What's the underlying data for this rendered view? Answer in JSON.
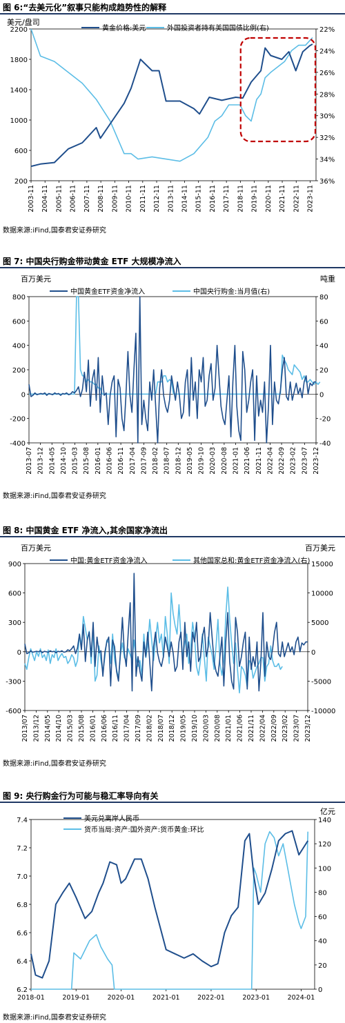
{
  "figures": [
    {
      "title": "图 6:“去美元化”叙事只能构成趋势性的解释",
      "source": "数据来源:iFind,国泰君安证券研究"
    },
    {
      "title": "图 7: 中国央行购金带动黄金 ETF 大规模净流入",
      "source": "数据来源:iFind,国泰君安证券研究"
    },
    {
      "title": "图 8: 中国黄金 ETF 净流入,其余国家净流出",
      "source": "数据来源:iFind,国泰君安证券研究"
    },
    {
      "title": "图 9: 央行购金行为可能与稳汇率导向有关",
      "source": "数据来源:iFind,国泰君安证券研究"
    }
  ],
  "colors": {
    "dark": "#1f4e8c",
    "light": "#5bbde6",
    "rule": "#1f3864",
    "box": "#c00000"
  },
  "chart_data": [
    {
      "type": "line",
      "ylabel": "美元/盘司",
      "ylim": [
        200,
        2200
      ],
      "yticks": [
        "2200",
        "1800",
        "1400",
        "1000",
        "600",
        "200"
      ],
      "y2lim": [
        22,
        36
      ],
      "y2_inverted": true,
      "y2ticks": [
        "22%",
        "24%",
        "26%",
        "28%",
        "30%",
        "32%",
        "34%",
        "36%"
      ],
      "xticks": [
        "2003-11",
        "2004-11",
        "2005-11",
        "2006-11",
        "2007-11",
        "2008-11",
        "2009-11",
        "2010-11",
        "2011-11",
        "2012-11",
        "2013-11",
        "2014-11",
        "2015-11",
        "2016-11",
        "2017-11",
        "2018-11",
        "2019-11",
        "2020-11",
        "2021-11",
        "2022-11",
        "2023-11"
      ],
      "annotation": "dashed box 2018-11 to 2023-11",
      "series": [
        {
          "name": "黄金价格:美元",
          "axis": "left",
          "x": [
            2003.83,
            2004.5,
            2005.5,
            2006.5,
            2007.5,
            2008.5,
            2008.8,
            2009.5,
            2010.5,
            2011.0,
            2011.67,
            2012.5,
            2013.0,
            2013.5,
            2014.5,
            2015.5,
            2015.9,
            2016.6,
            2017.5,
            2018.5,
            2019.0,
            2019.6,
            2020.3,
            2020.6,
            2021.0,
            2021.8,
            2022.3,
            2022.8,
            2023.3,
            2023.8,
            2024.0
          ],
          "y": [
            390,
            420,
            440,
            620,
            700,
            900,
            760,
            950,
            1220,
            1420,
            1800,
            1650,
            1650,
            1250,
            1250,
            1150,
            1080,
            1300,
            1260,
            1300,
            1290,
            1500,
            1650,
            1950,
            1850,
            1800,
            1900,
            1650,
            1900,
            1980,
            2000
          ]
        },
        {
          "name": "外国投资者持有美国国债比例(右)",
          "axis": "right",
          "x": [
            2003.83,
            2004.5,
            2005.5,
            2006.5,
            2007.5,
            2008.5,
            2009.5,
            2010.5,
            2011.0,
            2011.5,
            2012.5,
            2013.5,
            2014.5,
            2015.5,
            2016.5,
            2017.0,
            2017.5,
            2018.0,
            2018.8,
            2019.2,
            2019.6,
            2020.0,
            2020.3,
            2020.6,
            2021.0,
            2021.5,
            2022.0,
            2022.5,
            2023.0,
            2023.5,
            2024.0
          ],
          "y": [
            22.0,
            24.5,
            25.0,
            26.0,
            27.0,
            28.5,
            30.5,
            33.5,
            33.5,
            34.0,
            33.8,
            34.0,
            34.2,
            33.5,
            32.0,
            30.5,
            30.0,
            29.0,
            29.0,
            30.0,
            30.5,
            28.5,
            28.0,
            26.5,
            26.0,
            25.5,
            25.0,
            24.0,
            23.5,
            23.5,
            22.8
          ]
        }
      ]
    },
    {
      "type": "line",
      "ylabel": "百万美元",
      "y2label": "吨重",
      "ylim": [
        -400,
        800
      ],
      "yticks": [
        "800",
        "600",
        "400",
        "200",
        "0",
        "-200",
        "-400"
      ],
      "y2lim": [
        -40,
        80
      ],
      "y2ticks": [
        "80",
        "60",
        "40",
        "20",
        "0",
        "-20",
        "-40"
      ],
      "xticks": [
        "2013-07",
        "2013-12",
        "2014-05",
        "2014-10",
        "2015-03",
        "2015-08",
        "2016-01",
        "2016-06",
        "2016-11",
        "2017-04",
        "2017-09",
        "2018-02",
        "2018-07",
        "2018-12",
        "2019-05",
        "2019-10",
        "2020-03",
        "2020-08",
        "2021-01",
        "2021-06",
        "2021-11",
        "2022-04",
        "2022-09",
        "2023-02",
        "2023-07",
        "2023-12"
      ],
      "series": [
        {
          "name": "中国黄金ETF资金净流入",
          "axis": "left",
          "values": [
            80,
            -20,
            -10,
            10,
            -5,
            0,
            5,
            0,
            10,
            -10,
            5,
            0,
            -5,
            10,
            0,
            5,
            -10,
            5,
            0,
            10,
            -5,
            0,
            20,
            10,
            30,
            60,
            -20,
            40,
            180,
            20,
            280,
            -100,
            120,
            200,
            -50,
            300,
            -150,
            150,
            -10,
            10,
            -250,
            -10,
            100,
            150,
            -350,
            120,
            50,
            -200,
            -300,
            0,
            350,
            -10,
            -150,
            200,
            500,
            -400,
            800,
            -250,
            -50,
            -200,
            -300,
            100,
            -50,
            200,
            -100,
            -400,
            50,
            200,
            -10,
            -100,
            -150,
            -50,
            150,
            50,
            -50,
            100,
            -10,
            -200,
            -150,
            100,
            200,
            -180,
            300,
            -50,
            100,
            -200,
            200,
            100,
            300,
            -100,
            -50,
            150,
            250,
            -50,
            50,
            400,
            150,
            -100,
            -200,
            -250,
            -50,
            150,
            -350,
            100,
            400,
            -100,
            -300,
            -380,
            350,
            200,
            -150,
            -50,
            100,
            200,
            -380,
            150,
            -180,
            -50,
            -150,
            100,
            -400,
            -100,
            400,
            -250,
            100,
            -50,
            -80,
            30,
            200,
            300,
            -20,
            -50,
            100,
            -50,
            20,
            90,
            0,
            50,
            -30,
            100,
            150,
            0,
            90,
            70,
            100,
            100
          ]
        },
        {
          "name": "中国央行购金:当月值(右)",
          "axis": "right",
          "values": [
            0,
            0,
            0,
            0,
            0,
            0,
            0,
            0,
            0,
            0,
            0,
            0,
            0,
            0,
            0,
            0,
            0,
            0,
            0,
            0,
            0,
            0,
            0,
            0,
            80,
            80,
            20,
            15,
            15,
            10,
            12,
            10,
            10,
            8,
            8,
            5,
            5,
            0,
            0,
            0,
            0,
            0,
            0,
            0,
            0,
            0,
            0,
            0,
            0,
            0,
            0,
            0,
            0,
            0,
            0,
            0,
            0,
            0,
            0,
            0,
            0,
            0,
            0,
            0,
            0,
            10,
            10,
            10,
            15,
            15,
            10,
            12,
            10,
            0,
            0,
            0,
            0,
            0,
            0,
            0,
            0,
            0,
            0,
            0,
            0,
            0,
            0,
            0,
            0,
            0,
            0,
            0,
            0,
            0,
            0,
            0,
            0,
            0,
            0,
            0,
            0,
            0,
            0,
            0,
            0,
            0,
            0,
            0,
            0,
            0,
            0,
            0,
            0,
            0,
            0,
            0,
            0,
            0,
            0,
            0,
            0,
            0,
            0,
            0,
            0,
            0,
            0,
            0,
            32,
            28,
            25,
            20,
            18,
            16,
            24,
            22,
            20,
            18,
            12,
            15,
            10,
            10,
            12,
            10,
            8,
            10,
            8,
            10
          ]
        }
      ]
    },
    {
      "type": "line",
      "ylabel": "百万美元",
      "y2label": "百万美元",
      "ylim": [
        -600,
        900
      ],
      "yticks": [
        "900",
        "600",
        "300",
        "0",
        "-300",
        "-600"
      ],
      "y2lim": [
        -10000,
        15000
      ],
      "y2ticks": [
        "15000",
        "10000",
        "5000",
        "0",
        "-5000",
        "-10000"
      ],
      "xticks": [
        "2013/07",
        "2013/12",
        "2014/05",
        "2014/10",
        "2015/03",
        "2015/08",
        "2016/01",
        "2016/06",
        "2016/11",
        "2017/04",
        "2017/09",
        "2018/02",
        "2018/07",
        "2018/12",
        "2019/05",
        "2019/10",
        "2020/03",
        "2020/08",
        "2021/01",
        "2021/06",
        "2021/11",
        "2022/04",
        "2022/09",
        "2023/02",
        "2023/07",
        "2023/12"
      ],
      "series": [
        {
          "name": "中国:黄金ETF资金净流入",
          "axis": "left",
          "values": [
            80,
            -20,
            -10,
            10,
            -5,
            0,
            5,
            0,
            10,
            -10,
            5,
            0,
            -5,
            10,
            0,
            5,
            -10,
            5,
            0,
            10,
            -5,
            0,
            20,
            10,
            30,
            60,
            -20,
            40,
            180,
            20,
            280,
            -100,
            120,
            200,
            -50,
            300,
            -150,
            150,
            -10,
            10,
            -250,
            -10,
            100,
            150,
            -350,
            120,
            50,
            -200,
            -300,
            0,
            350,
            -10,
            -150,
            200,
            500,
            -400,
            800,
            -250,
            -50,
            -200,
            -300,
            100,
            -50,
            200,
            -100,
            -400,
            50,
            200,
            -10,
            -100,
            -150,
            -50,
            150,
            50,
            -50,
            100,
            -10,
            -200,
            -150,
            100,
            200,
            -180,
            300,
            -50,
            100,
            -200,
            200,
            100,
            300,
            -100,
            -50,
            150,
            250,
            -50,
            50,
            400,
            150,
            -100,
            -200,
            -250,
            -50,
            150,
            -350,
            100,
            400,
            -100,
            -300,
            -380,
            350,
            200,
            -150,
            -50,
            100,
            200,
            -380,
            150,
            -180,
            -50,
            -150,
            100,
            -400,
            -100,
            400,
            -250,
            100,
            -50,
            -80,
            30,
            200,
            300,
            -20,
            -50,
            100,
            -50,
            20,
            90,
            0,
            50,
            -30,
            100,
            150,
            0,
            90,
            70,
            100,
            100
          ]
        },
        {
          "name": "其他国家总和:黄金ETF资金净流入(右)",
          "axis": "right",
          "values": [
            -2000,
            -3000,
            -1000,
            500,
            -500,
            -1500,
            0,
            -800,
            500,
            -1000,
            -500,
            -1500,
            300,
            -2000,
            -500,
            -1000,
            500,
            -1500,
            -800,
            -300,
            -1000,
            -800,
            -2000,
            -1500,
            -500,
            -1000,
            -2500,
            -1500,
            3000,
            1000,
            6000,
            4000,
            2000,
            3500,
            -2000,
            4000,
            -5000,
            -4000,
            1000,
            -1500,
            -3500,
            -1000,
            2000,
            1500,
            -2000,
            3000,
            -1500,
            -3000,
            -4500,
            -500,
            1500,
            -1000,
            -1500,
            500,
            -500,
            -1500,
            2000,
            -1000,
            -2500,
            -1500,
            -4000,
            3000,
            -1000,
            1000,
            5500,
            2000,
            -1500,
            2000,
            5000,
            1500,
            3000,
            -1000,
            6000,
            3000,
            -2000,
            10000,
            6500,
            4500,
            3000,
            8000,
            2500,
            -1000,
            1500,
            3000,
            -2000,
            500,
            5000,
            2500,
            -2500,
            -4000,
            -1500,
            3000,
            -1000,
            -5000,
            2500,
            1000,
            -500,
            -3000,
            1000,
            5500,
            -2000,
            -4000,
            -1500,
            6000,
            11000,
            5500,
            1500,
            -2000,
            1500,
            -3000,
            -7000,
            -2500,
            -3000,
            -4000,
            -6000,
            -1500,
            -2000,
            -4500,
            -3500,
            -2500,
            -2000,
            -1000,
            -1000,
            -5000,
            -2500,
            -2000,
            1000,
            -1500,
            -2500,
            -2500,
            -2000,
            -3000,
            -2500
          ]
        }
      ]
    },
    {
      "type": "line",
      "ylim": [
        6.2,
        7.4
      ],
      "yticks": [
        "7.4",
        "7.2",
        "7.0",
        "6.8",
        "6.6",
        "6.4",
        "6.2"
      ],
      "y2label": "亿元",
      "y2lim": [
        0,
        140
      ],
      "y2ticks": [
        "140",
        "120",
        "100",
        "80",
        "60",
        "40",
        "20",
        "0"
      ],
      "xticks": [
        "2018-01",
        "2019-01",
        "2020-01",
        "2021-01",
        "2022-01",
        "2023-01",
        "2024-01"
      ],
      "series": [
        {
          "name": "美元兑离岸人民币",
          "axis": "left",
          "x": [
            2018.0,
            2018.1,
            2018.25,
            2018.4,
            2018.55,
            2018.7,
            2018.85,
            2019.0,
            2019.2,
            2019.35,
            2019.5,
            2019.6,
            2019.75,
            2019.9,
            2020.0,
            2020.1,
            2020.3,
            2020.45,
            2020.6,
            2020.75,
            2020.9,
            2021.0,
            2021.2,
            2021.4,
            2021.6,
            2021.8,
            2022.0,
            2022.15,
            2022.3,
            2022.45,
            2022.6,
            2022.75,
            2022.85,
            2022.95,
            2023.05,
            2023.2,
            2023.35,
            2023.5,
            2023.65,
            2023.8,
            2023.95,
            2024.05,
            2024.15
          ],
          "y": [
            6.45,
            6.3,
            6.28,
            6.4,
            6.8,
            6.88,
            6.95,
            6.85,
            6.7,
            6.75,
            6.88,
            6.95,
            7.1,
            7.08,
            6.95,
            6.98,
            7.12,
            7.12,
            6.98,
            6.78,
            6.6,
            6.48,
            6.45,
            6.42,
            6.45,
            6.4,
            6.36,
            6.38,
            6.6,
            6.72,
            6.78,
            7.25,
            7.3,
            7.0,
            6.8,
            6.88,
            7.05,
            7.25,
            7.3,
            7.32,
            7.15,
            7.2,
            7.25
          ]
        },
        {
          "name": "货币当局:资产:国外资产:货币黄金:环比",
          "axis": "right",
          "x": [
            2018.0,
            2018.9,
            2018.95,
            2019.1,
            2019.3,
            2019.45,
            2019.55,
            2019.7,
            2019.8,
            2019.85,
            2022.9,
            2022.95,
            2023.0,
            2023.1,
            2023.2,
            2023.3,
            2023.4,
            2023.5,
            2023.6,
            2023.7,
            2023.75,
            2023.85,
            2023.95,
            2024.0,
            2024.1,
            2024.15
          ],
          "y": [
            0,
            0,
            30,
            25,
            40,
            45,
            35,
            25,
            20,
            0,
            0,
            100,
            95,
            80,
            120,
            130,
            125,
            110,
            120,
            100,
            90,
            70,
            55,
            50,
            60,
            130
          ]
        }
      ]
    }
  ]
}
